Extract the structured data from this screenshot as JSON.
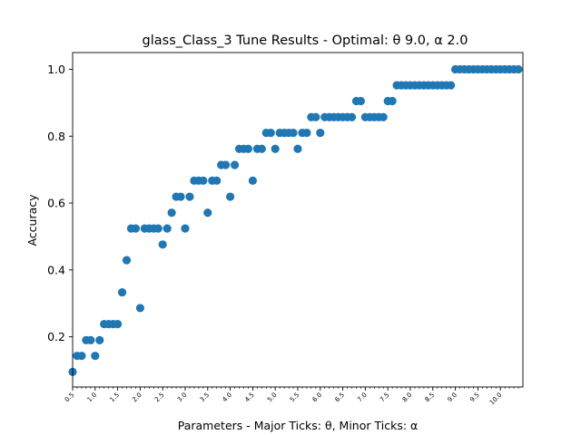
{
  "chart_data": {
    "type": "scatter",
    "title": "glass_Class_3 Tune Results - Optimal: θ 9.0, α 2.0",
    "xlabel": "Parameters - Major Ticks: θ, Minor Ticks: α",
    "ylabel": "Accuracy",
    "xlim": [
      0.5,
      10.5
    ],
    "ylim": [
      0.05,
      1.05
    ],
    "x_ticks": [
      "0.5",
      "1.0",
      "1.5",
      "2.0",
      "2.5",
      "3.0",
      "3.5",
      "4.0",
      "4.5",
      "5.0",
      "5.5",
      "6.0",
      "6.5",
      "7.0",
      "7.5",
      "8.0",
      "8.5",
      "9.0",
      "9.5",
      "10.0"
    ],
    "y_ticks": [
      "0.2",
      "0.4",
      "0.6",
      "0.8",
      "1.0"
    ],
    "grid": false,
    "marker_color": "#1f77b4",
    "points": [
      {
        "x": 0.5,
        "y": 0.095
      },
      {
        "x": 0.6,
        "y": 0.143
      },
      {
        "x": 0.7,
        "y": 0.143
      },
      {
        "x": 0.8,
        "y": 0.19
      },
      {
        "x": 0.9,
        "y": 0.19
      },
      {
        "x": 1.0,
        "y": 0.143
      },
      {
        "x": 1.1,
        "y": 0.19
      },
      {
        "x": 1.2,
        "y": 0.238
      },
      {
        "x": 1.3,
        "y": 0.238
      },
      {
        "x": 1.4,
        "y": 0.238
      },
      {
        "x": 1.5,
        "y": 0.238
      },
      {
        "x": 1.6,
        "y": 0.333
      },
      {
        "x": 1.7,
        "y": 0.429
      },
      {
        "x": 1.8,
        "y": 0.524
      },
      {
        "x": 1.9,
        "y": 0.524
      },
      {
        "x": 2.0,
        "y": 0.286
      },
      {
        "x": 2.1,
        "y": 0.524
      },
      {
        "x": 2.2,
        "y": 0.524
      },
      {
        "x": 2.3,
        "y": 0.524
      },
      {
        "x": 2.4,
        "y": 0.524
      },
      {
        "x": 2.5,
        "y": 0.476
      },
      {
        "x": 2.6,
        "y": 0.524
      },
      {
        "x": 2.7,
        "y": 0.571
      },
      {
        "x": 2.8,
        "y": 0.619
      },
      {
        "x": 2.9,
        "y": 0.619
      },
      {
        "x": 3.0,
        "y": 0.524
      },
      {
        "x": 3.1,
        "y": 0.619
      },
      {
        "x": 3.2,
        "y": 0.667
      },
      {
        "x": 3.3,
        "y": 0.667
      },
      {
        "x": 3.4,
        "y": 0.667
      },
      {
        "x": 3.5,
        "y": 0.571
      },
      {
        "x": 3.6,
        "y": 0.667
      },
      {
        "x": 3.7,
        "y": 0.667
      },
      {
        "x": 3.8,
        "y": 0.714
      },
      {
        "x": 3.9,
        "y": 0.714
      },
      {
        "x": 4.0,
        "y": 0.619
      },
      {
        "x": 4.1,
        "y": 0.714
      },
      {
        "x": 4.2,
        "y": 0.762
      },
      {
        "x": 4.3,
        "y": 0.762
      },
      {
        "x": 4.4,
        "y": 0.762
      },
      {
        "x": 4.5,
        "y": 0.667
      },
      {
        "x": 4.6,
        "y": 0.762
      },
      {
        "x": 4.7,
        "y": 0.762
      },
      {
        "x": 4.8,
        "y": 0.81
      },
      {
        "x": 4.9,
        "y": 0.81
      },
      {
        "x": 5.0,
        "y": 0.762
      },
      {
        "x": 5.1,
        "y": 0.81
      },
      {
        "x": 5.2,
        "y": 0.81
      },
      {
        "x": 5.3,
        "y": 0.81
      },
      {
        "x": 5.4,
        "y": 0.81
      },
      {
        "x": 5.5,
        "y": 0.762
      },
      {
        "x": 5.6,
        "y": 0.81
      },
      {
        "x": 5.7,
        "y": 0.81
      },
      {
        "x": 5.8,
        "y": 0.857
      },
      {
        "x": 5.9,
        "y": 0.857
      },
      {
        "x": 6.0,
        "y": 0.81
      },
      {
        "x": 6.1,
        "y": 0.857
      },
      {
        "x": 6.2,
        "y": 0.857
      },
      {
        "x": 6.3,
        "y": 0.857
      },
      {
        "x": 6.4,
        "y": 0.857
      },
      {
        "x": 6.5,
        "y": 0.857
      },
      {
        "x": 6.6,
        "y": 0.857
      },
      {
        "x": 6.7,
        "y": 0.857
      },
      {
        "x": 6.8,
        "y": 0.905
      },
      {
        "x": 6.9,
        "y": 0.905
      },
      {
        "x": 7.0,
        "y": 0.857
      },
      {
        "x": 7.1,
        "y": 0.857
      },
      {
        "x": 7.2,
        "y": 0.857
      },
      {
        "x": 7.3,
        "y": 0.857
      },
      {
        "x": 7.4,
        "y": 0.857
      },
      {
        "x": 7.5,
        "y": 0.905
      },
      {
        "x": 7.6,
        "y": 0.905
      },
      {
        "x": 7.7,
        "y": 0.952
      },
      {
        "x": 7.8,
        "y": 0.952
      },
      {
        "x": 7.9,
        "y": 0.952
      },
      {
        "x": 8.0,
        "y": 0.952
      },
      {
        "x": 8.1,
        "y": 0.952
      },
      {
        "x": 8.2,
        "y": 0.952
      },
      {
        "x": 8.3,
        "y": 0.952
      },
      {
        "x": 8.4,
        "y": 0.952
      },
      {
        "x": 8.5,
        "y": 0.952
      },
      {
        "x": 8.6,
        "y": 0.952
      },
      {
        "x": 8.7,
        "y": 0.952
      },
      {
        "x": 8.8,
        "y": 0.952
      },
      {
        "x": 8.9,
        "y": 0.952
      },
      {
        "x": 9.0,
        "y": 1.0
      },
      {
        "x": 9.1,
        "y": 1.0
      },
      {
        "x": 9.2,
        "y": 1.0
      },
      {
        "x": 9.3,
        "y": 1.0
      },
      {
        "x": 9.4,
        "y": 1.0
      },
      {
        "x": 9.5,
        "y": 1.0
      },
      {
        "x": 9.6,
        "y": 1.0
      },
      {
        "x": 9.7,
        "y": 1.0
      },
      {
        "x": 9.8,
        "y": 1.0
      },
      {
        "x": 9.9,
        "y": 1.0
      },
      {
        "x": 10.0,
        "y": 1.0
      },
      {
        "x": 10.1,
        "y": 1.0
      },
      {
        "x": 10.2,
        "y": 1.0
      },
      {
        "x": 10.3,
        "y": 1.0
      },
      {
        "x": 10.4,
        "y": 1.0
      }
    ]
  }
}
